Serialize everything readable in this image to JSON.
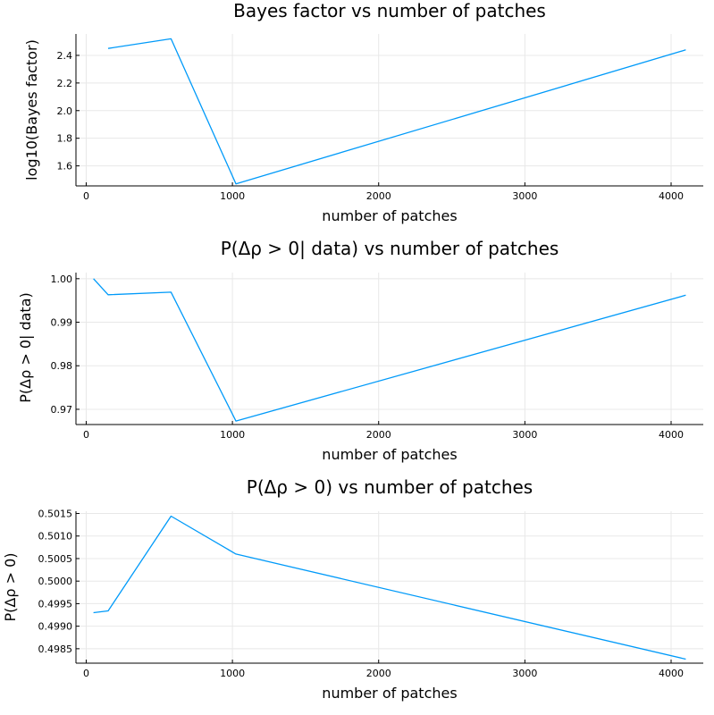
{
  "series_color": "#009af9",
  "chart_data": [
    {
      "type": "line",
      "title": "Bayes factor vs number of patches",
      "xlabel": "number of patches",
      "ylabel": "log10(Bayes factor)",
      "xlim": [
        -70,
        4220
      ],
      "ylim": [
        1.455,
        2.555
      ],
      "xticks": [
        0,
        1000,
        2000,
        3000,
        4000
      ],
      "xtick_labels": [
        "0",
        "1000",
        "2000",
        "3000",
        "4000"
      ],
      "yticks": [
        1.6,
        1.8,
        2.0,
        2.2,
        2.4
      ],
      "ytick_labels": [
        "1.6",
        "1.8",
        "2.0",
        "2.2",
        "2.4"
      ],
      "grid": true,
      "x": [
        150,
        580,
        1024,
        4100
      ],
      "y": [
        2.45,
        2.52,
        1.47,
        2.44
      ]
    },
    {
      "type": "line",
      "title": "P(Δρ > 0| data) vs number of patches",
      "xlabel": "number of patches",
      "ylabel": "P(Δρ > 0| data)",
      "xlim": [
        -70,
        4220
      ],
      "ylim": [
        0.9665,
        1.0014
      ],
      "xticks": [
        0,
        1000,
        2000,
        3000,
        4000
      ],
      "xtick_labels": [
        "0",
        "1000",
        "2000",
        "3000",
        "4000"
      ],
      "yticks": [
        0.97,
        0.98,
        0.99,
        1.0
      ],
      "ytick_labels": [
        "0.97",
        "0.98",
        "0.99",
        "1.00"
      ],
      "grid": true,
      "x": [
        50,
        150,
        580,
        1024,
        4100
      ],
      "y": [
        1.0,
        0.9963,
        0.9969,
        0.9673,
        0.9962
      ]
    },
    {
      "type": "line",
      "title": "P(Δρ > 0) vs number of patches",
      "xlabel": "number of patches",
      "ylabel": "P(Δρ > 0)",
      "xlim": [
        -70,
        4220
      ],
      "ylim": [
        0.49818,
        0.50155
      ],
      "xticks": [
        0,
        1000,
        2000,
        3000,
        4000
      ],
      "xtick_labels": [
        "0",
        "1000",
        "2000",
        "3000",
        "4000"
      ],
      "yticks": [
        0.4985,
        0.499,
        0.4995,
        0.5,
        0.5005,
        0.501,
        0.5015
      ],
      "ytick_labels": [
        "0.4985",
        "0.4990",
        "0.4995",
        "0.5000",
        "0.5005",
        "0.5010",
        "0.5015"
      ],
      "grid": true,
      "x": [
        50,
        150,
        580,
        1024,
        4100
      ],
      "y": [
        0.4993,
        0.49934,
        0.50144,
        0.5006,
        0.49827
      ]
    }
  ]
}
